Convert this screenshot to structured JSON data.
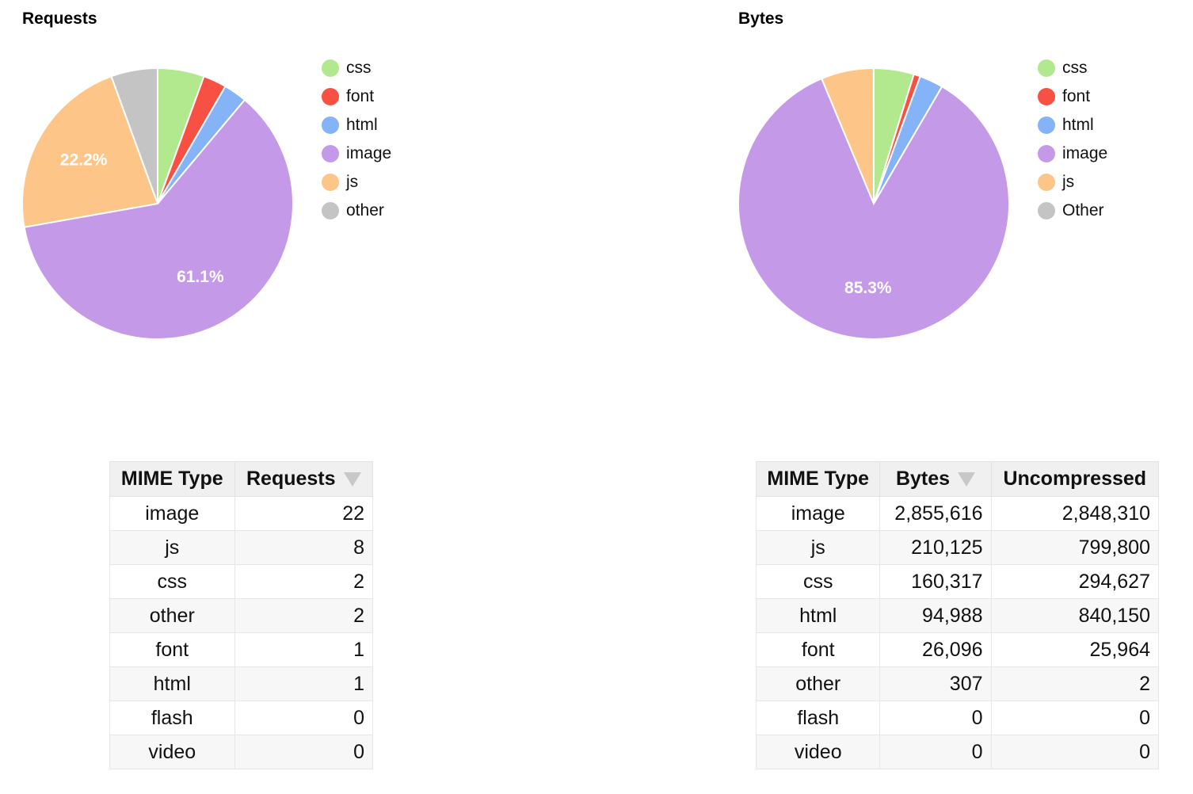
{
  "chart_data": [
    {
      "type": "pie",
      "title": "Requests",
      "legend": "right",
      "categories": [
        "css",
        "font",
        "html",
        "image",
        "js",
        "other"
      ],
      "values": [
        2,
        1,
        1,
        22,
        8,
        2
      ],
      "percent_labels": [
        "",
        "",
        "",
        "61.1%",
        "22.2%",
        ""
      ],
      "colors": [
        "#b2e98f",
        "#f85042",
        "#84b4f7",
        "#c49ae8",
        "#fdc587",
        "#c4c4c4"
      ]
    },
    {
      "type": "pie",
      "title": "Bytes",
      "legend": "right",
      "categories": [
        "css",
        "font",
        "html",
        "image",
        "js",
        "Other"
      ],
      "values": [
        160317,
        26096,
        94988,
        2855616,
        210125,
        307
      ],
      "percent_labels": [
        "",
        "",
        "",
        "85.3%",
        "",
        ""
      ],
      "colors": [
        "#b2e98f",
        "#f85042",
        "#84b4f7",
        "#c49ae8",
        "#fdc587",
        "#c4c4c4"
      ]
    }
  ],
  "requests_table": {
    "headers": [
      "MIME Type",
      "Requests"
    ],
    "sort_icon": "sort-descending-icon",
    "rows": [
      [
        "image",
        "22"
      ],
      [
        "js",
        "8"
      ],
      [
        "css",
        "2"
      ],
      [
        "other",
        "2"
      ],
      [
        "font",
        "1"
      ],
      [
        "html",
        "1"
      ],
      [
        "flash",
        "0"
      ],
      [
        "video",
        "0"
      ]
    ]
  },
  "bytes_table": {
    "headers": [
      "MIME Type",
      "Bytes",
      "Uncompressed"
    ],
    "sort_icon": "sort-descending-icon",
    "rows": [
      [
        "image",
        "2,855,616",
        "2,848,310"
      ],
      [
        "js",
        "210,125",
        "799,800"
      ],
      [
        "css",
        "160,317",
        "294,627"
      ],
      [
        "html",
        "94,988",
        "840,150"
      ],
      [
        "font",
        "26,096",
        "25,964"
      ],
      [
        "other",
        "307",
        "2"
      ],
      [
        "flash",
        "0",
        "0"
      ],
      [
        "video",
        "0",
        "0"
      ]
    ]
  }
}
